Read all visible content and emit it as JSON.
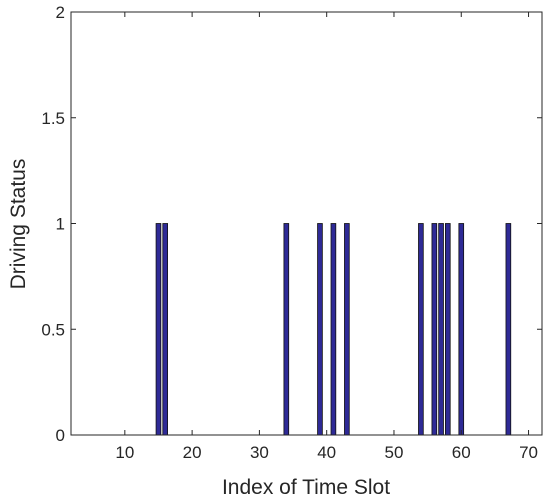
{
  "chart_data": {
    "type": "bar",
    "title": "",
    "xlabel": "Index of Time Slot",
    "ylabel": "Driving Status",
    "xlim": [
      2,
      72
    ],
    "ylim": [
      0,
      2
    ],
    "xticks": [
      10,
      20,
      30,
      40,
      50,
      60,
      70
    ],
    "yticks": [
      0,
      0.5,
      1,
      1.5,
      2
    ],
    "ytick_labels": [
      "0",
      "0.5",
      "1",
      "1.5",
      "2"
    ],
    "grid": false,
    "legend": "none",
    "bar_color": "#2e2a96",
    "bar_edge_color": "#111111",
    "x": [
      15,
      16,
      34,
      39,
      41,
      43,
      54,
      56,
      57,
      58,
      60,
      67
    ],
    "values": [
      1,
      1,
      1,
      1,
      1,
      1,
      1,
      1,
      1,
      1,
      1,
      1
    ]
  }
}
